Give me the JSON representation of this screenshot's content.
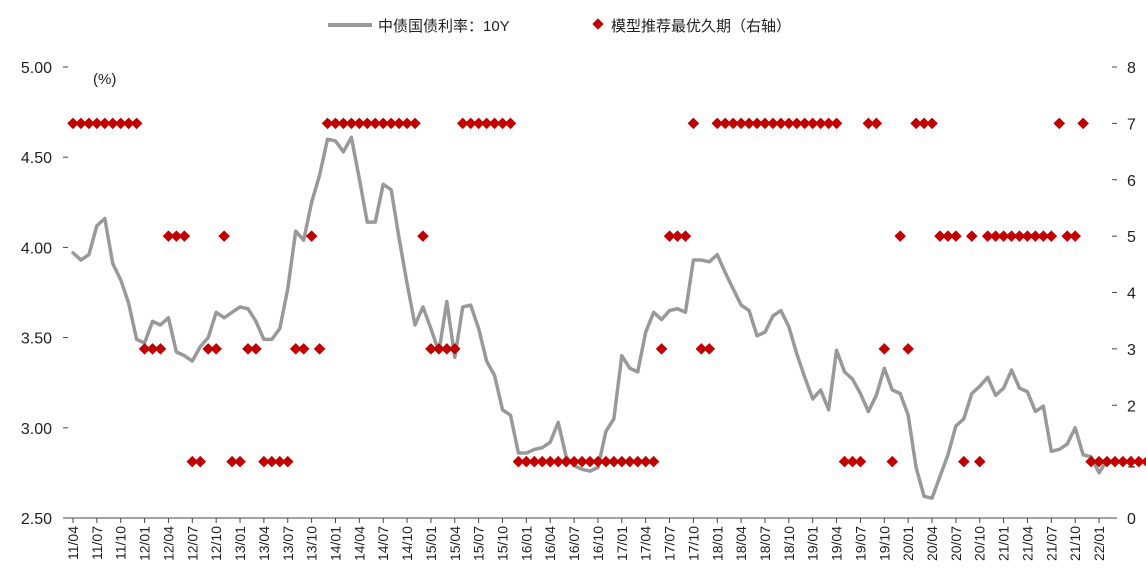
{
  "chart_data": {
    "type": "line",
    "title": "",
    "legend": {
      "placement": "top-center",
      "entries": [
        "中债国债利率：10Y",
        "模型推荐最优久期（右轴）"
      ]
    },
    "y_left": {
      "unit": "(%)",
      "range": [
        2.5,
        5.0
      ],
      "ticks": [
        "2.50",
        "3.00",
        "3.50",
        "4.00",
        "4.50",
        "5.00"
      ]
    },
    "y_right": {
      "range": [
        0,
        8
      ],
      "ticks": [
        "0",
        "1",
        "2",
        "3",
        "4",
        "5",
        "6",
        "7",
        "8"
      ]
    },
    "x_tick_labels": [
      "11/04",
      "11/07",
      "11/10",
      "12/01",
      "12/04",
      "12/07",
      "12/10",
      "13/01",
      "13/04",
      "13/07",
      "13/10",
      "14/01",
      "14/04",
      "14/07",
      "14/10",
      "15/01",
      "15/04",
      "15/07",
      "15/10",
      "16/01",
      "16/04",
      "16/07",
      "16/10",
      "17/01",
      "17/04",
      "17/07",
      "17/10",
      "18/01",
      "18/04",
      "18/07",
      "18/10",
      "19/01",
      "19/04",
      "19/07",
      "19/10",
      "20/01",
      "20/04",
      "20/07",
      "20/10",
      "21/01",
      "21/04",
      "21/07",
      "21/10",
      "22/01"
    ],
    "series": [
      {
        "name": "中债国债利率：10Y",
        "kind": "line",
        "axis": "left",
        "color": "#999999",
        "values": [
          3.97,
          3.93,
          3.96,
          4.12,
          4.16,
          3.91,
          3.82,
          3.69,
          3.49,
          3.47,
          3.59,
          3.57,
          3.61,
          3.42,
          3.4,
          3.37,
          3.45,
          3.5,
          3.64,
          3.61,
          3.64,
          3.67,
          3.66,
          3.59,
          3.49,
          3.49,
          3.55,
          3.77,
          4.09,
          4.04,
          4.25,
          4.4,
          4.6,
          4.59,
          4.53,
          4.61,
          4.38,
          4.14,
          4.14,
          4.35,
          4.32,
          4.05,
          3.8,
          3.57,
          3.67,
          3.55,
          3.42,
          3.7,
          3.39,
          3.67,
          3.68,
          3.55,
          3.37,
          3.29,
          3.1,
          3.07,
          2.86,
          2.86,
          2.88,
          2.89,
          2.92,
          3.03,
          2.84,
          2.79,
          2.77,
          2.76,
          2.78,
          2.98,
          3.05,
          3.4,
          3.33,
          3.31,
          3.53,
          3.64,
          3.6,
          3.65,
          3.66,
          3.64,
          3.93,
          3.93,
          3.92,
          3.96,
          3.86,
          3.77,
          3.68,
          3.65,
          3.51,
          3.53,
          3.62,
          3.65,
          3.56,
          3.41,
          3.28,
          3.16,
          3.21,
          3.1,
          3.43,
          3.31,
          3.27,
          3.19,
          3.09,
          3.18,
          3.33,
          3.21,
          3.19,
          3.07,
          2.78,
          2.62,
          2.61,
          2.73,
          2.85,
          3.01,
          3.05,
          3.19,
          3.23,
          3.28,
          3.18,
          3.22,
          3.32,
          3.22,
          3.2,
          3.09,
          3.12,
          2.87,
          2.88,
          2.91,
          3.0,
          2.85,
          2.84,
          2.75,
          2.82
        ]
      },
      {
        "name": "模型推荐最优久期（右轴）",
        "kind": "scatter",
        "axis": "right",
        "color": "#c00000",
        "values": [
          7,
          7,
          7,
          7,
          7,
          7,
          7,
          7,
          7,
          3,
          3,
          3,
          5,
          5,
          5,
          1,
          1,
          3,
          3,
          5,
          1,
          1,
          3,
          3,
          1,
          1,
          1,
          1,
          3,
          3,
          5,
          3,
          7,
          7,
          7,
          7,
          7,
          7,
          7,
          7,
          7,
          7,
          7,
          7,
          5,
          3,
          3,
          3,
          3,
          7,
          7,
          7,
          7,
          7,
          7,
          7,
          1,
          1,
          1,
          1,
          1,
          1,
          1,
          1,
          1,
          1,
          1,
          1,
          1,
          1,
          1,
          1,
          1,
          1,
          3,
          5,
          5,
          5,
          7,
          3,
          3,
          7,
          7,
          7,
          7,
          7,
          7,
          7,
          7,
          7,
          7,
          7,
          7,
          7,
          7,
          7,
          7,
          1,
          1,
          1,
          7,
          7,
          3,
          1,
          5,
          3,
          7,
          7,
          7,
          5,
          5,
          5,
          1,
          5,
          1,
          5,
          5,
          5,
          5,
          5,
          5,
          5,
          5,
          5,
          7,
          5,
          5,
          7,
          1,
          1,
          1,
          1,
          1,
          1,
          1,
          1
        ]
      }
    ]
  }
}
